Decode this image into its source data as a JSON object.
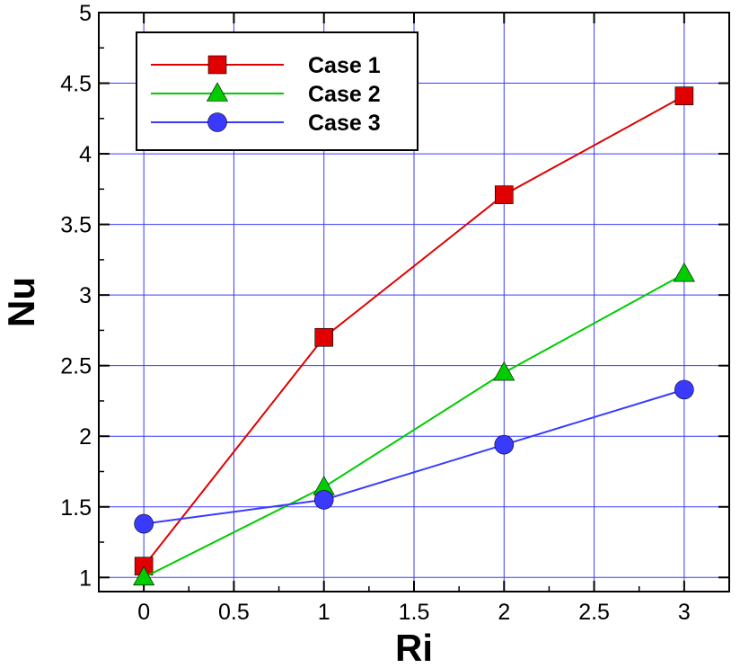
{
  "chart_data": {
    "type": "line",
    "xlabel": "Ri",
    "ylabel": "Nu",
    "xlim": [
      -0.25,
      3.25
    ],
    "ylim": [
      0.9,
      5
    ],
    "xticks": [
      0,
      0.5,
      1,
      1.5,
      2,
      2.5,
      3
    ],
    "xtick_labels": [
      "0",
      "0.5",
      "1",
      "1.5",
      "2",
      "2.5",
      "3"
    ],
    "yticks": [
      1,
      1.5,
      2,
      2.5,
      3,
      3.5,
      4,
      4.5,
      5
    ],
    "ytick_labels": [
      "1",
      "1.5",
      "2",
      "2.5",
      "3",
      "3.5",
      "4",
      "4.5",
      "5"
    ],
    "grid": true,
    "legend_position": "top-left",
    "x": [
      0,
      1,
      2,
      3
    ],
    "series": [
      {
        "name": "Case 1",
        "values": [
          1.08,
          2.7,
          3.71,
          4.41
        ],
        "color": "#e00000",
        "marker": "square"
      },
      {
        "name": "Case 2",
        "values": [
          1.0,
          1.64,
          2.45,
          3.15
        ],
        "color": "#00cc00",
        "marker": "triangle"
      },
      {
        "name": "Case 3",
        "values": [
          1.38,
          1.55,
          1.94,
          2.33
        ],
        "color": "#3a3aff",
        "marker": "circle"
      }
    ]
  }
}
